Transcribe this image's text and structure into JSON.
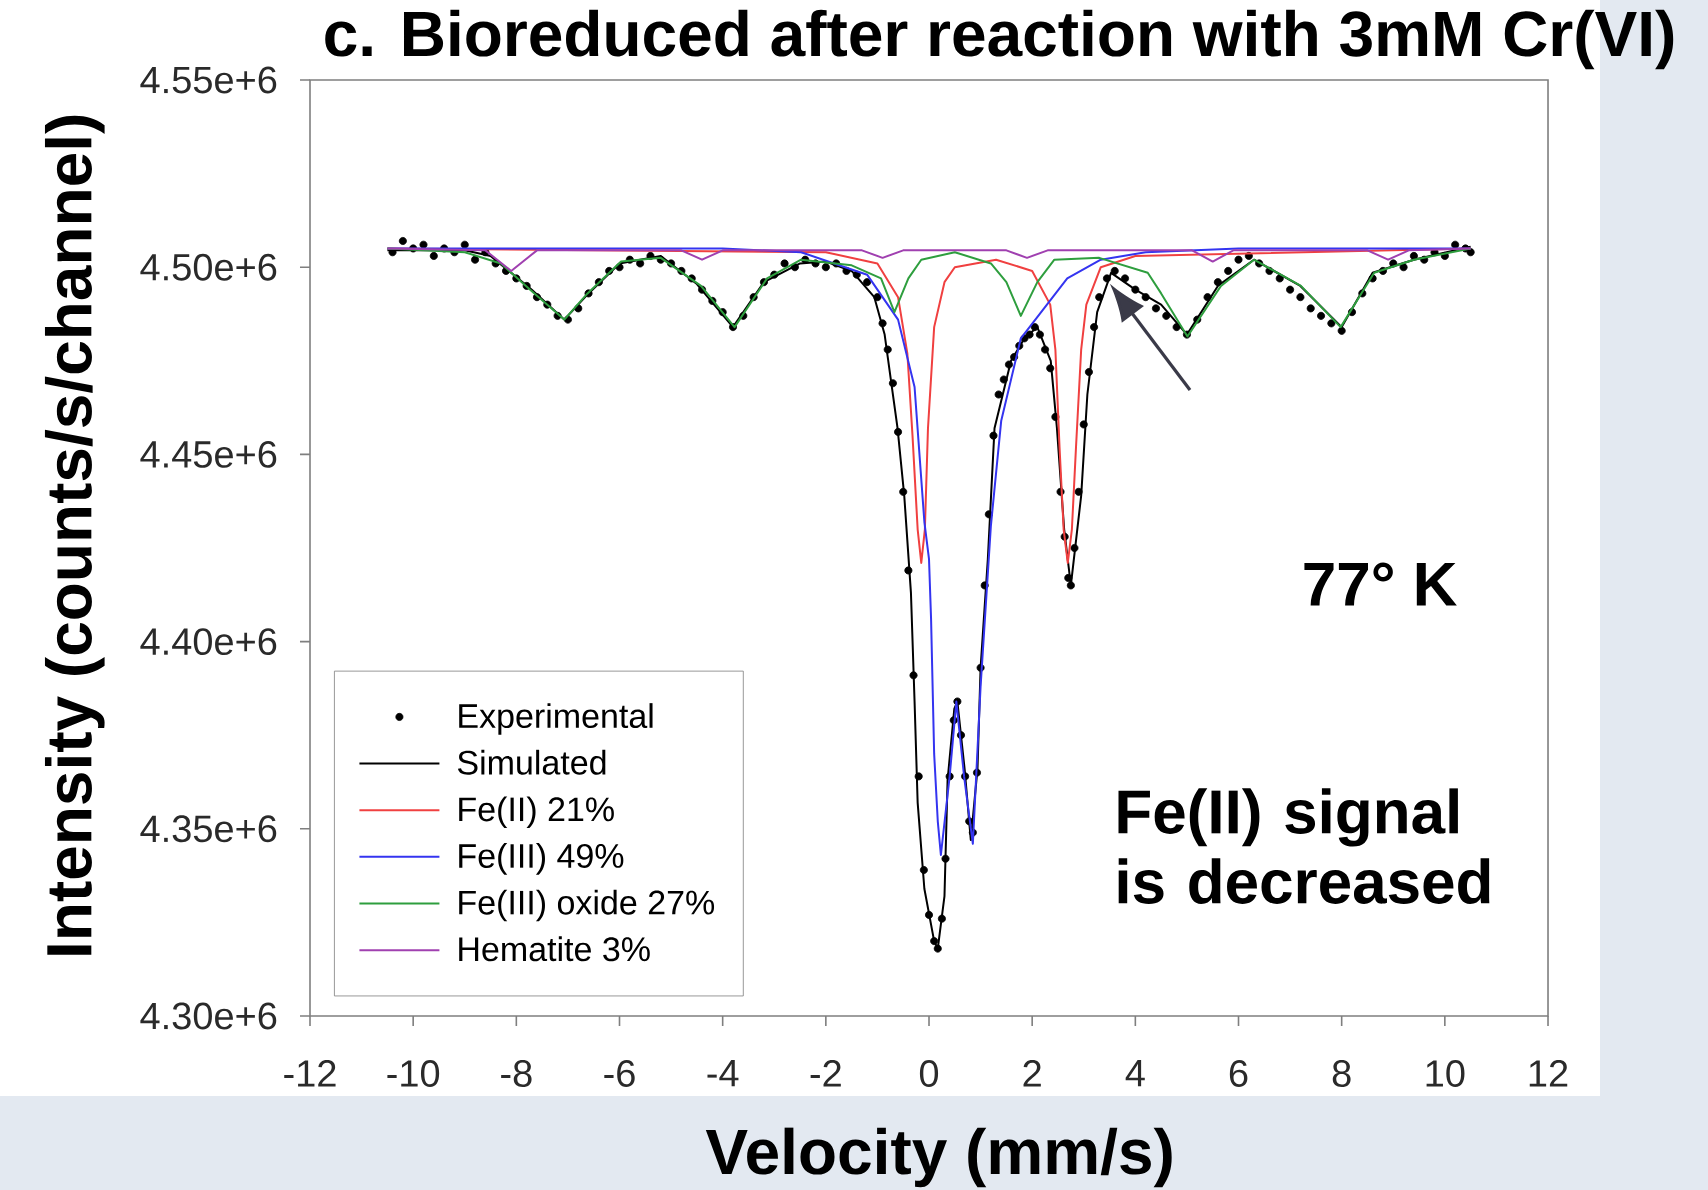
{
  "chart_data": {
    "type": "line",
    "title": "c. Bioreduced after reaction with 3mM Cr(VI)",
    "xlabel": "Velocity (mm/s)",
    "ylabel": "Intensity (counts/s/channel)",
    "xlim": [
      -12,
      12
    ],
    "xticks": [
      -12,
      -10,
      -8,
      -6,
      -4,
      -2,
      0,
      2,
      4,
      6,
      8,
      10,
      12
    ],
    "ylim": [
      4300000,
      4550000
    ],
    "yticks": [
      {
        "value": 4300000,
        "label": "4.30e+6"
      },
      {
        "value": 4350000,
        "label": "4.35e+6"
      },
      {
        "value": 4400000,
        "label": "4.40e+6"
      },
      {
        "value": 4450000,
        "label": "4.45e+6"
      },
      {
        "value": 4500000,
        "label": "4.50e+6"
      },
      {
        "value": 4550000,
        "label": "4.55e+6"
      }
    ],
    "legend": "bottom left",
    "annotations": [
      "77° K",
      "Fe(II) signal is decreased"
    ],
    "series": [
      {
        "name": "Experimental",
        "type": "scatter",
        "marker": "circle",
        "color": "#000000",
        "x": [
          -10.4,
          -10.2,
          -10.0,
          -9.8,
          -9.6,
          -9.4,
          -9.2,
          -9.0,
          -8.8,
          -8.6,
          -8.4,
          -8.2,
          -8.0,
          -7.8,
          -7.6,
          -7.4,
          -7.2,
          -7.0,
          -6.8,
          -6.6,
          -6.4,
          -6.2,
          -6.0,
          -5.8,
          -5.6,
          -5.4,
          -5.2,
          -5.0,
          -4.8,
          -4.6,
          -4.4,
          -4.2,
          -4.0,
          -3.8,
          -3.6,
          -3.4,
          -3.2,
          -3.0,
          -2.8,
          -2.6,
          -2.4,
          -2.2,
          -2.0,
          -1.8,
          -1.6,
          -1.4,
          -1.2,
          -1.0,
          -0.9,
          -0.8,
          -0.7,
          -0.6,
          -0.5,
          -0.4,
          -0.3,
          -0.2,
          -0.1,
          0.0,
          0.1,
          0.17,
          0.25,
          0.32,
          0.4,
          0.48,
          0.55,
          0.62,
          0.7,
          0.78,
          0.85,
          0.93,
          1.0,
          1.08,
          1.16,
          1.25,
          1.35,
          1.45,
          1.55,
          1.65,
          1.75,
          1.85,
          1.95,
          2.05,
          2.15,
          2.25,
          2.35,
          2.45,
          2.55,
          2.63,
          2.7,
          2.75,
          2.82,
          2.9,
          3.0,
          3.1,
          3.2,
          3.3,
          3.45,
          3.6,
          3.8,
          4.0,
          4.2,
          4.4,
          4.6,
          4.8,
          5.0,
          5.2,
          5.4,
          5.6,
          5.8,
          6.0,
          6.2,
          6.4,
          6.6,
          6.8,
          7.0,
          7.2,
          7.4,
          7.6,
          7.8,
          8.0,
          8.2,
          8.4,
          8.6,
          8.8,
          9.0,
          9.2,
          9.4,
          9.6,
          9.8,
          10.0,
          10.2,
          10.4,
          10.5
        ],
        "values": [
          4504000,
          4507000,
          4505000,
          4506000,
          4503000,
          4505000,
          4504000,
          4506000,
          4502000,
          4504000,
          4501000,
          4499000,
          4497000,
          4495000,
          4492000,
          4490000,
          4487000,
          4486000,
          4489000,
          4493000,
          4496000,
          4499000,
          4500000,
          4502000,
          4501000,
          4503000,
          4502000,
          4501000,
          4499000,
          4497000,
          4494000,
          4491000,
          4488000,
          4484000,
          4487000,
          4492000,
          4496000,
          4498000,
          4501000,
          4500000,
          4502000,
          4501000,
          4500000,
          4501000,
          4499000,
          4498000,
          4496000,
          4492000,
          4485000,
          4478000,
          4469000,
          4456000,
          4440000,
          4419000,
          4391000,
          4364000,
          4339000,
          4327000,
          4320000,
          4318000,
          4326000,
          4342000,
          4364000,
          4379000,
          4384000,
          4375000,
          4364000,
          4352000,
          4349000,
          4365000,
          4393000,
          4415000,
          4434000,
          4455000,
          4466000,
          4470000,
          4474000,
          4476000,
          4479000,
          4481000,
          4482000,
          4484000,
          4482000,
          4478000,
          4473000,
          4460000,
          4440000,
          4428000,
          4417000,
          4415000,
          4425000,
          4440000,
          4458000,
          4472000,
          4484000,
          4492000,
          4497000,
          4499000,
          4497000,
          4494000,
          4492000,
          4489000,
          4487000,
          4484000,
          4482000,
          4486000,
          4492000,
          4496000,
          4499000,
          4502000,
          4503000,
          4501000,
          4499000,
          4497000,
          4494000,
          4492000,
          4489000,
          4487000,
          4485000,
          4483000,
          4488000,
          4493000,
          4497000,
          4499000,
          4501000,
          4500000,
          4503000,
          4502000,
          4504000,
          4503000,
          4506000,
          4505000,
          4504000
        ]
      },
      {
        "name": "Simulated",
        "color": "#000000",
        "x": [
          -10.5,
          -9.0,
          -8.5,
          -8.1,
          -7.7,
          -7.07,
          -6.6,
          -6.0,
          -5.2,
          -4.5,
          -3.8,
          -3.2,
          -2.5,
          -2.0,
          -1.5,
          -1.06,
          -0.86,
          -0.74,
          -0.61,
          -0.48,
          -0.35,
          -0.28,
          -0.22,
          -0.09,
          0.1,
          0.17,
          0.3,
          0.36,
          0.49,
          0.55,
          0.69,
          0.81,
          0.94,
          1.0,
          1.14,
          1.27,
          1.59,
          1.85,
          2.1,
          2.36,
          2.48,
          2.62,
          2.75,
          2.95,
          3.07,
          3.26,
          3.53,
          4.0,
          4.5,
          5.0,
          5.6,
          6.3,
          7.2,
          8.0,
          8.6,
          9.4,
          10.5
        ],
        "values": [
          4504500,
          4504500,
          4503000,
          4498500,
          4494000,
          4486000,
          4493000,
          4501000,
          4503000,
          4495500,
          4484000,
          4496000,
          4501000,
          4501500,
          4499000,
          4492000,
          4482000,
          4470000,
          4457000,
          4439000,
          4413000,
          4384000,
          4357000,
          4334000,
          4320000,
          4318000,
          4332000,
          4363000,
          4382000,
          4384000,
          4366000,
          4347000,
          4366000,
          4393000,
          4422000,
          4457000,
          4475000,
          4481000,
          4484000,
          4475000,
          4457000,
          4430000,
          4415000,
          4439000,
          4466000,
          4488000,
          4498500,
          4494000,
          4490000,
          4482000,
          4495000,
          4502000,
          4495000,
          4484000,
          4498500,
          4502000,
          4505500
        ]
      },
      {
        "name": "Fe(II) 21%",
        "color": "#f04040",
        "x": [
          -10.5,
          -2.0,
          -1.0,
          -0.6,
          -0.42,
          -0.32,
          -0.22,
          -0.15,
          -0.08,
          -0.02,
          0.1,
          0.3,
          0.5,
          1.3,
          2.0,
          2.35,
          2.45,
          2.53,
          2.61,
          2.69,
          2.77,
          2.85,
          2.95,
          3.05,
          3.33,
          4.0,
          10.5
        ],
        "values": [
          4505000,
          4504000,
          4501000,
          4492000,
          4477000,
          4455000,
          4430000,
          4421000,
          4430000,
          4457000,
          4484000,
          4496000,
          4500000,
          4502000,
          4499000,
          4490000,
          4478000,
          4452000,
          4430000,
          4421000,
          4430000,
          4452000,
          4478000,
          4490000,
          4500000,
          4503000,
          4505000
        ]
      },
      {
        "name": "Fe(III) 49%",
        "color": "#3434f0",
        "x": [
          -10.5,
          -4.0,
          -2.48,
          -1.2,
          -0.6,
          -0.28,
          -0.09,
          0.0,
          0.04,
          0.1,
          0.17,
          0.23,
          0.4,
          0.53,
          0.68,
          0.85,
          1.0,
          1.2,
          1.4,
          1.78,
          2.68,
          3.33,
          4.2,
          6.0,
          10.5
        ],
        "values": [
          4505000,
          4505000,
          4504000,
          4498000,
          4486000,
          4468000,
          4432000,
          4422000,
          4406000,
          4370000,
          4352000,
          4343000,
          4364000,
          4384000,
          4364000,
          4346000,
          4388000,
          4431000,
          4459000,
          4481000,
          4497000,
          4502000,
          4504000,
          4505000,
          4505000
        ]
      },
      {
        "name": "Fe(III) oxide 27%",
        "color": "#2e9e3e",
        "x": [
          -10.5,
          -9.0,
          -8.3,
          -7.65,
          -7.07,
          -6.62,
          -5.97,
          -5.2,
          -4.42,
          -3.77,
          -3.14,
          -2.48,
          -1.5,
          -0.93,
          -0.67,
          -0.4,
          -0.15,
          0.5,
          1.2,
          1.5,
          1.78,
          2.1,
          2.43,
          3.3,
          4.24,
          4.5,
          5.01,
          5.66,
          6.3,
          7.21,
          7.98,
          8.63,
          9.4,
          10.5
        ],
        "values": [
          4505000,
          4504000,
          4501000,
          4493000,
          4486000,
          4493000,
          4501500,
          4502500,
          4495000,
          4484000,
          4497000,
          4502000,
          4500500,
          4497000,
          4488000,
          4497000,
          4502000,
          4504000,
          4501000,
          4496000,
          4487000,
          4496000,
          4502000,
          4502500,
          4498500,
          4493000,
          4481500,
          4495000,
          4502000,
          4495000,
          4484000,
          4498500,
          4502000,
          4505000
        ]
      },
      {
        "name": "Hematite 3%",
        "color": "#a040b0",
        "x": [
          -10.5,
          -8.6,
          -8.1,
          -7.6,
          -4.8,
          -4.4,
          -4.0,
          -1.3,
          -0.9,
          -0.5,
          1.5,
          1.9,
          2.3,
          5.1,
          5.5,
          5.9,
          8.5,
          8.9,
          9.3,
          10.5
        ],
        "values": [
          4505000,
          4504500,
          4499000,
          4504500,
          4504500,
          4502000,
          4504500,
          4504500,
          4502500,
          4504500,
          4504500,
          4502500,
          4504500,
          4504500,
          4501500,
          4504500,
          4504500,
          4502000,
          4504500,
          4505000
        ]
      }
    ]
  }
}
